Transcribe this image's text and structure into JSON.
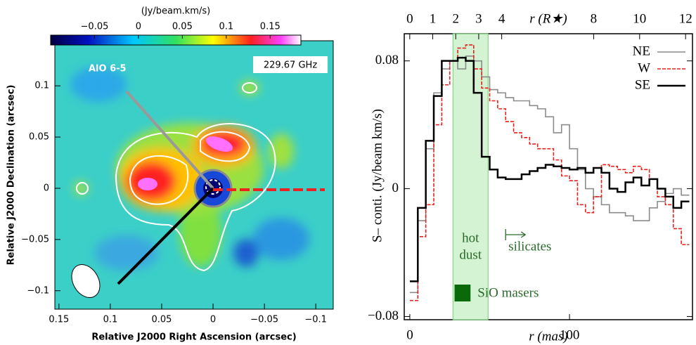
{
  "chart_data": [
    {
      "type": "image",
      "title": "AlO 6-5",
      "annotation": "229.67 GHz",
      "colorbar_label": "(Jy/beam.km/s)",
      "clim": [
        -0.1,
        0.185
      ],
      "cticks": [
        {
          "value": -0.05,
          "label": "−0.05"
        },
        0,
        0.05,
        0.1,
        0.15
      ],
      "x_label": "Relative J2000 Right Ascension (arcsec)",
      "y_label": "Relative J2000 Declination (arcsec)",
      "xlim": [
        0.154,
        -0.117
      ],
      "ylim": [
        -0.118,
        0.144
      ],
      "xticks": [
        0.15,
        0.1,
        0.05,
        0,
        {
          "value": -0.05,
          "label": "−0.05"
        },
        {
          "value": -0.1,
          "label": "−0.1"
        }
      ],
      "yticks": [
        {
          "value": -0.1,
          "label": "−0.1"
        },
        {
          "value": -0.05,
          "label": "−0.05"
        },
        0,
        0.05,
        0.1
      ]
    },
    {
      "type": "step",
      "x_label": "r (mas)",
      "y_label": "S– conti. (Jy/beam km/s)",
      "x2_label": "r (R★)",
      "xlim": [
        -3.5,
        177
      ],
      "x2lim": [
        -0.24,
        12.3
      ],
      "ylim": [
        -0.082,
        0.097
      ],
      "xticks": [
        0,
        100
      ],
      "x2ticks": [
        0,
        1,
        2,
        3,
        4,
        8,
        10,
        12
      ],
      "yticks": [
        {
          "value": -0.08,
          "label": "−0.08"
        },
        0,
        0.08
      ],
      "x": [
        0,
        5,
        10,
        15,
        20,
        25,
        30,
        35,
        40,
        45,
        50,
        55,
        60,
        65,
        70,
        75,
        80,
        85,
        90,
        95,
        100,
        105,
        110,
        115,
        120,
        125,
        130,
        135,
        140,
        145,
        150,
        155,
        160,
        165,
        170
      ],
      "series": [
        {
          "name": "NE",
          "color": "#8c8c8c",
          "dash": false,
          "values": [
            -0.065,
            -0.02,
            0.025,
            0.06,
            0.075,
            0.08,
            0.075,
            0.083,
            0.08,
            0.07,
            0.062,
            0.06,
            0.057,
            0.055,
            0.055,
            0.052,
            0.05,
            0.045,
            0.035,
            0.04,
            0.025,
            0.012,
            0.0,
            -0.005,
            -0.01,
            -0.015,
            -0.015,
            -0.017,
            -0.02,
            -0.02,
            -0.012,
            -0.008,
            -0.003,
            0.0,
            -0.004
          ]
        },
        {
          "name": "W",
          "color": "#e8211c",
          "dash": true,
          "values": [
            -0.07,
            -0.03,
            -0.01,
            0.04,
            0.065,
            0.08,
            0.088,
            0.09,
            0.075,
            0.063,
            0.055,
            0.05,
            0.042,
            0.035,
            0.032,
            0.028,
            0.025,
            0.025,
            0.018,
            0.008,
            0.005,
            -0.01,
            -0.015,
            -0.005,
            0.015,
            0.014,
            0.012,
            0.01,
            0.014,
            0.012,
            0.006,
            -0.005,
            -0.01,
            -0.025,
            -0.035
          ]
        },
        {
          "name": "SE",
          "color": "#000000",
          "dash": false,
          "values": [
            -0.058,
            -0.012,
            0.03,
            0.058,
            0.08,
            0.08,
            0.082,
            0.08,
            0.06,
            0.02,
            0.012,
            0.007,
            0.006,
            0.006,
            0.009,
            0.011,
            0.013,
            0.015,
            0.014,
            0.013,
            0.012,
            0.013,
            0.01,
            0.013,
            0.01,
            0.0,
            -0.002,
            0.004,
            0.007,
            0.002,
            0.006,
            0.0,
            -0.005,
            -0.012,
            -0.008
          ]
        }
      ],
      "band": {
        "range": [
          27,
          49
        ],
        "label": [
          "hot",
          "dust"
        ]
      },
      "arrow_label": "silicates",
      "arrow_x": 60,
      "box_label": "SiO masers",
      "box_x": [
        28,
        38
      ]
    }
  ]
}
